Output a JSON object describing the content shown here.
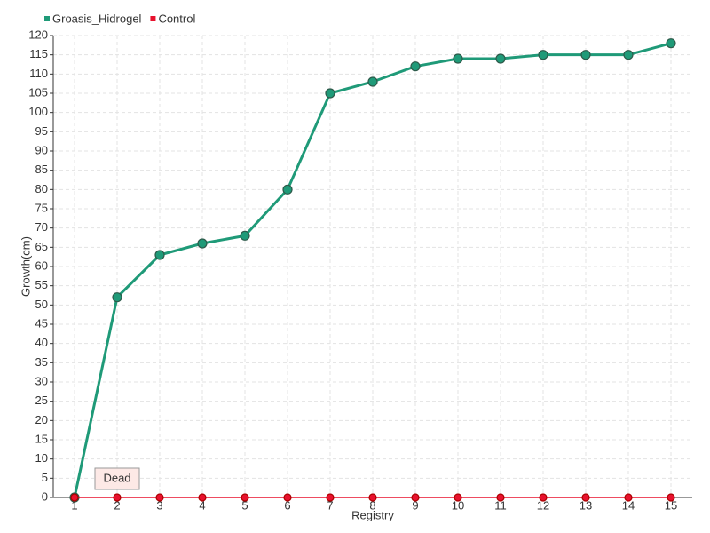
{
  "chart_data": {
    "type": "line",
    "x_label": "Registry",
    "y_label": "Growth(cm)",
    "x": [
      1,
      2,
      3,
      4,
      5,
      6,
      7,
      8,
      9,
      10,
      11,
      12,
      13,
      14,
      15
    ],
    "xlim": [
      0.5,
      15.5
    ],
    "xticks": [
      1,
      2,
      3,
      4,
      5,
      6,
      7,
      8,
      9,
      10,
      11,
      12,
      13,
      14,
      15
    ],
    "ylim": [
      0,
      120
    ],
    "yticks": [
      0,
      5,
      10,
      15,
      20,
      25,
      30,
      35,
      40,
      45,
      50,
      55,
      60,
      65,
      70,
      75,
      80,
      85,
      90,
      95,
      100,
      105,
      110,
      115,
      120
    ],
    "grid": true,
    "legend": "top-left",
    "series": [
      {
        "name": "Groasis_Hidrogel",
        "color": "#1f9a78",
        "values": [
          0,
          52,
          63,
          66,
          68,
          80,
          105,
          108,
          112,
          114,
          114,
          115,
          115,
          115,
          118
        ]
      },
      {
        "name": "Control",
        "color": "#e8112d",
        "values": [
          0,
          0,
          0,
          0,
          0,
          0,
          0,
          0,
          0,
          0,
          0,
          0,
          0,
          0,
          0
        ]
      }
    ],
    "annotations": [
      {
        "text": "Dead",
        "x": 2
      }
    ]
  }
}
